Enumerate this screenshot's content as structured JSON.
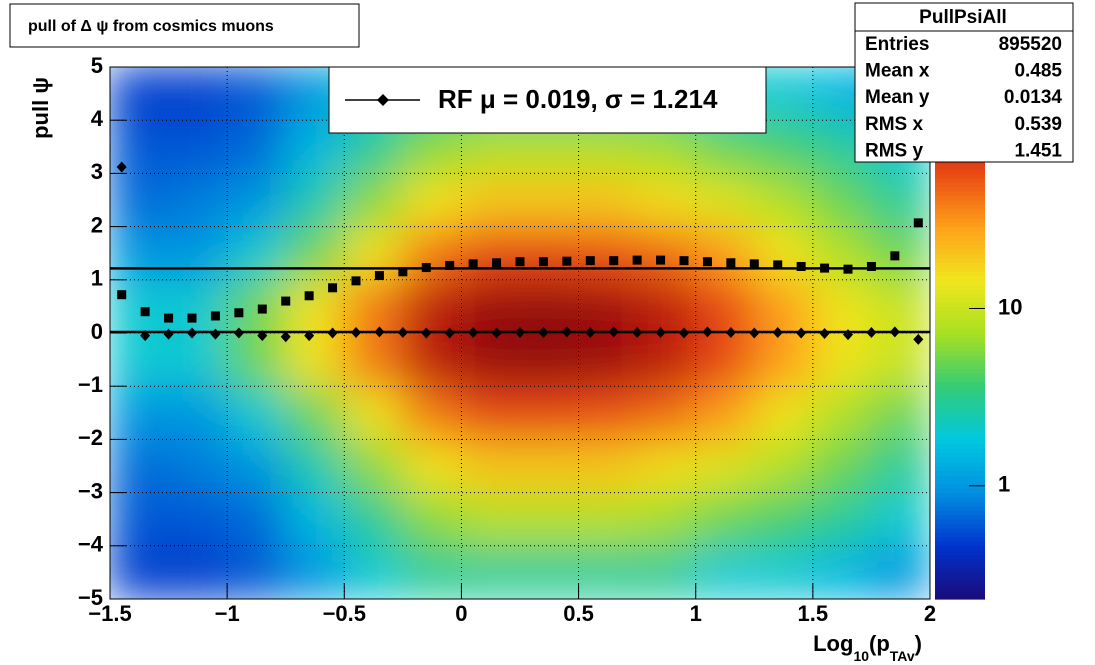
{
  "chart_data": {
    "type": "heatmap_profile",
    "title": "pull of Δ ψ from cosmics muons",
    "y_label": "pull ψ",
    "x_label": {
      "main": "Log",
      "sub": "10",
      "mid": "(p",
      "sub2": "TAv",
      "end": ")"
    },
    "xlim": [
      -1.5,
      2
    ],
    "ylim": [
      -5,
      5
    ],
    "xticks": [
      {
        "value": -1.5,
        "label": "−1.5"
      },
      {
        "value": -1,
        "label": "−1"
      },
      {
        "value": -0.5,
        "label": "−0.5"
      },
      0,
      0.5,
      1,
      1.5,
      2
    ],
    "yticks": [
      {
        "value": -5,
        "label": "−5"
      },
      {
        "value": -4,
        "label": "−4"
      },
      {
        "value": -3,
        "label": "−3"
      },
      {
        "value": -2,
        "label": "−2"
      },
      {
        "value": -1,
        "label": "−1"
      },
      0,
      1,
      2,
      3,
      4,
      5
    ],
    "grid": true,
    "zlim": [
      0.23,
      230
    ],
    "zlog": true,
    "zticks": [
      1,
      10
    ],
    "colorscale": [
      "#1a0a7a",
      "#0033cc",
      "#008fe0",
      "#00c8e0",
      "#33cc77",
      "#a8e020",
      "#f0e61e",
      "#ffa01a",
      "#ea4a14",
      "#b01010",
      "#700808"
    ],
    "x_bins": [
      -1.5,
      -1.25,
      -1,
      -0.75,
      -0.5,
      -0.25,
      0,
      0.25,
      0.5,
      0.75,
      1,
      1.25,
      1.5,
      1.75,
      2
    ],
    "y_bins": [
      -5,
      -4,
      -3,
      -2,
      -1,
      0,
      1,
      2,
      3,
      4,
      5
    ],
    "z": [
      [
        0.5,
        0.5,
        0.6,
        1,
        2,
        3,
        3,
        3,
        3,
        3,
        2,
        2,
        1.5,
        1
      ],
      [
        0.6,
        0.6,
        0.7,
        1.5,
        3,
        6,
        8,
        8,
        8,
        7,
        5,
        4,
        3,
        2
      ],
      [
        0.7,
        0.8,
        1,
        2.5,
        6,
        15,
        20,
        20,
        20,
        16,
        12,
        8,
        5,
        3
      ],
      [
        1,
        1,
        2,
        5,
        15,
        40,
        60,
        60,
        55,
        45,
        30,
        15,
        8,
        5
      ],
      [
        2,
        2,
        5,
        15,
        40,
        100,
        150,
        160,
        140,
        100,
        60,
        30,
        15,
        10
      ],
      [
        2,
        2,
        5,
        15,
        40,
        100,
        150,
        160,
        140,
        100,
        60,
        30,
        15,
        10
      ],
      [
        1,
        1,
        2,
        5,
        15,
        40,
        60,
        60,
        55,
        45,
        30,
        15,
        8,
        5
      ],
      [
        0.7,
        0.8,
        1,
        2.5,
        6,
        15,
        20,
        20,
        20,
        16,
        12,
        8,
        5,
        3
      ],
      [
        0.6,
        0.6,
        0.7,
        1.5,
        3,
        6,
        8,
        8,
        8,
        7,
        5,
        4,
        3,
        2
      ],
      [
        0.5,
        0.5,
        0.6,
        1,
        2,
        3,
        3,
        3,
        3,
        3,
        2,
        2,
        1.5,
        1
      ]
    ],
    "x": [
      -1.45,
      -1.35,
      -1.25,
      -1.15,
      -1.05,
      -0.95,
      -0.85,
      -0.75,
      -0.65,
      -0.55,
      -0.45,
      -0.35,
      -0.25,
      -0.15,
      -0.05,
      0.05,
      0.15,
      0.25,
      0.35,
      0.45,
      0.55,
      0.65,
      0.75,
      0.85,
      0.95,
      1.05,
      1.15,
      1.25,
      1.35,
      1.45,
      1.55,
      1.65,
      1.75,
      1.85,
      1.95
    ],
    "series": [
      {
        "name": "sigma",
        "marker": "square",
        "color": "#000000",
        "values": [
          0.72,
          0.4,
          0.28,
          0.28,
          0.32,
          0.38,
          0.45,
          0.6,
          0.7,
          0.85,
          0.98,
          1.08,
          1.15,
          1.23,
          1.27,
          1.3,
          1.32,
          1.34,
          1.34,
          1.35,
          1.36,
          1.36,
          1.37,
          1.37,
          1.36,
          1.34,
          1.32,
          1.3,
          1.28,
          1.25,
          1.22,
          1.2,
          1.25,
          1.45,
          2.07
        ]
      },
      {
        "name": "mean",
        "marker": "diamond",
        "color": "#000000",
        "values": [
          3.12,
          -0.05,
          -0.02,
          0,
          -0.02,
          0,
          -0.05,
          -0.07,
          -0.05,
          0,
          0.01,
          0.02,
          0.01,
          0,
          0,
          0.01,
          0,
          0.01,
          0.01,
          0.02,
          0.01,
          0.02,
          0.01,
          0.01,
          0,
          0.02,
          0.01,
          0,
          0.01,
          0,
          -0.01,
          -0.03,
          0.01,
          0.02,
          -0.12
        ]
      }
    ],
    "fit_sigma": 1.214,
    "fit_mean": 0.019,
    "legend_label": "RF μ =  0.019, σ =   1.214",
    "stats": {
      "title": "PullPsiAll",
      "rows": [
        [
          "Entries",
          "895520"
        ],
        [
          "Mean x",
          "0.485"
        ],
        [
          "Mean y",
          "0.0134"
        ],
        [
          "RMS x",
          "0.539"
        ],
        [
          "RMS y",
          "1.451"
        ]
      ]
    }
  }
}
